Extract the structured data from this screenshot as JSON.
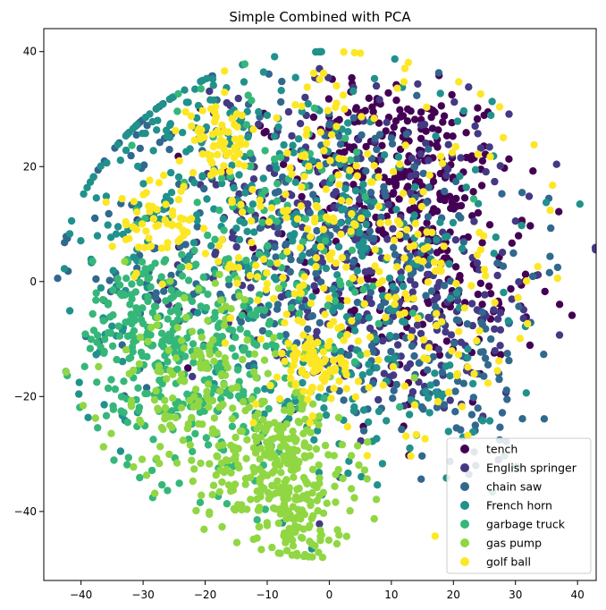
{
  "chart_data": {
    "type": "scatter",
    "title": "Simple Combined with PCA",
    "xlabel": "",
    "ylabel": "",
    "xlim": [
      -46,
      43
    ],
    "ylim": [
      -52,
      44
    ],
    "xticks": [
      -40,
      -30,
      -20,
      -10,
      0,
      10,
      20,
      30,
      40
    ],
    "yticks": [
      -40,
      -20,
      0,
      20,
      40
    ],
    "grid": false,
    "legend_position": "lower-right",
    "series": [
      {
        "name": "tench",
        "color": "#440154",
        "clusters": [
          {
            "cx": 12,
            "cy": 18,
            "sx": 9,
            "sy": 8,
            "n": 190
          },
          {
            "cx": 18,
            "cy": -2,
            "sx": 8,
            "sy": 10,
            "n": 120
          },
          {
            "cx": 8,
            "cy": 30,
            "sx": 5,
            "sy": 3,
            "n": 40
          },
          {
            "cx": 0,
            "cy": 10,
            "sx": 14,
            "sy": 14,
            "n": 60
          }
        ]
      },
      {
        "name": "English springer",
        "color": "#443983",
        "clusters": [
          {
            "cx": 5,
            "cy": 8,
            "sx": 13,
            "sy": 13,
            "n": 230
          },
          {
            "cx": 15,
            "cy": -10,
            "sx": 9,
            "sy": 7,
            "n": 90
          },
          {
            "cx": -10,
            "cy": 15,
            "sx": 9,
            "sy": 9,
            "n": 60
          }
        ]
      },
      {
        "name": "chain saw",
        "color": "#31688e",
        "clusters": [
          {
            "cx": 0,
            "cy": 5,
            "sx": 16,
            "sy": 15,
            "n": 280
          },
          {
            "cx": -30,
            "cy": 10,
            "sx": 5,
            "sy": 14,
            "n": 50
          },
          {
            "cx": 20,
            "cy": -15,
            "sx": 9,
            "sy": 8,
            "n": 80
          }
        ]
      },
      {
        "name": "French horn",
        "color": "#21918c",
        "clusters": [
          {
            "cx": -5,
            "cy": 10,
            "sx": 16,
            "sy": 14,
            "n": 280
          },
          {
            "cx": -20,
            "cy": 28,
            "sx": 8,
            "sy": 5,
            "n": 60
          },
          {
            "cx": 10,
            "cy": -20,
            "sx": 11,
            "sy": 10,
            "n": 100
          },
          {
            "cx": -36,
            "cy": 0,
            "sx": 4,
            "sy": 12,
            "n": 40
          }
        ]
      },
      {
        "name": "garbage truck",
        "color": "#35b779",
        "clusters": [
          {
            "cx": -22,
            "cy": -15,
            "sx": 8,
            "sy": 10,
            "n": 260
          },
          {
            "cx": -30,
            "cy": -5,
            "sx": 4,
            "sy": 5,
            "n": 90
          },
          {
            "cx": -10,
            "cy": 5,
            "sx": 12,
            "sy": 16,
            "n": 120
          }
        ]
      },
      {
        "name": "gas pump",
        "color": "#90d743",
        "clusters": [
          {
            "cx": -8,
            "cy": -32,
            "sx": 6,
            "sy": 7,
            "n": 280
          },
          {
            "cx": -22,
            "cy": -18,
            "sx": 7,
            "sy": 9,
            "n": 150
          },
          {
            "cx": -5,
            "cy": -42,
            "sx": 3,
            "sy": 3,
            "n": 60
          }
        ]
      },
      {
        "name": "golf ball",
        "color": "#fde725",
        "clusters": [
          {
            "cx": 0,
            "cy": 10,
            "sx": 15,
            "sy": 13,
            "n": 230
          },
          {
            "cx": -2,
            "cy": -15,
            "sx": 3,
            "sy": 3,
            "n": 70
          },
          {
            "cx": -18,
            "cy": 24,
            "sx": 3,
            "sy": 3,
            "n": 60
          },
          {
            "cx": -28,
            "cy": 10,
            "sx": 3,
            "sy": 4,
            "n": 50
          },
          {
            "cx": 15,
            "cy": -10,
            "sx": 10,
            "sy": 10,
            "n": 70
          }
        ]
      }
    ]
  }
}
